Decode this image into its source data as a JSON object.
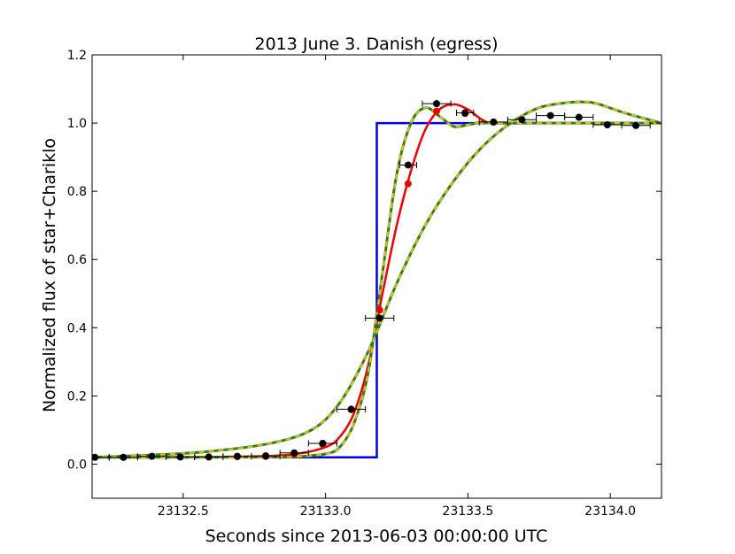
{
  "chart_data": {
    "type": "line",
    "title": "2013 June 3. Danish (egress)",
    "xlabel": "Seconds since 2013-06-03 00:00:00 UTC",
    "ylabel": "Normalized flux of star+Chariklo",
    "xlim": [
      23132.18,
      23134.18
    ],
    "ylim": [
      -0.1,
      1.2
    ],
    "x_ticks": [
      23132.5,
      23133.0,
      23133.5,
      23134.0
    ],
    "x_tick_labels": [
      "23132.5",
      "23133.0",
      "23133.5",
      "23134.0"
    ],
    "y_ticks": [
      0.0,
      0.2,
      0.4,
      0.6,
      0.8,
      1.0,
      1.2
    ],
    "y_tick_labels": [
      "0.0",
      "0.2",
      "0.4",
      "0.6",
      "0.8",
      "1.0",
      "1.2"
    ],
    "grid": false,
    "legend": "none",
    "colors": {
      "observations": "#000000",
      "square_well": "#0000dd",
      "best_fit": "#ee0000",
      "green": "#2e7d2e",
      "yellow": "#e0c000"
    },
    "observations": {
      "x": [
        23132.19,
        23132.29,
        23132.39,
        23132.49,
        23132.59,
        23132.69,
        23132.79,
        23132.89,
        23132.99,
        23133.09,
        23133.19,
        23133.29,
        23133.39,
        23133.49,
        23133.59,
        23133.69,
        23133.79,
        23133.89,
        23133.99,
        23134.09
      ],
      "y": [
        0.02,
        0.02,
        0.023,
        0.021,
        0.021,
        0.023,
        0.023,
        0.033,
        0.061,
        0.161,
        0.428,
        0.877,
        1.057,
        1.03,
        1.003,
        1.01,
        1.022,
        1.017,
        0.995,
        0.993
      ],
      "xerr": [
        0.05,
        0.05,
        0.05,
        0.05,
        0.05,
        0.05,
        0.05,
        0.05,
        0.05,
        0.05,
        0.05,
        0.03,
        0.05,
        0.03,
        0.05,
        0.05,
        0.05,
        0.05,
        0.05,
        0.05
      ]
    },
    "square_well": {
      "x": [
        23132.18,
        23133.18,
        23133.18,
        23134.18
      ],
      "y": [
        0.02,
        0.02,
        1.0,
        1.0
      ]
    },
    "best_fit_curve": {
      "x": [
        23132.18,
        23132.4,
        23132.6,
        23132.8,
        23132.9,
        23133.0,
        23133.05,
        23133.1,
        23133.15,
        23133.2,
        23133.25,
        23133.3,
        23133.35,
        23133.4,
        23133.45,
        23133.5,
        23133.55,
        23133.6,
        23133.8,
        23134.18
      ],
      "y": [
        0.02,
        0.02,
        0.021,
        0.024,
        0.03,
        0.05,
        0.08,
        0.15,
        0.29,
        0.5,
        0.7,
        0.86,
        0.98,
        1.04,
        1.055,
        1.04,
        1.01,
        1.0,
        1.0,
        1.0
      ]
    },
    "best_fit_points": {
      "x": [
        23132.69,
        23132.79,
        23132.89,
        23132.99,
        23133.09,
        23133.19,
        23133.29,
        23133.39,
        23133.49,
        23133.59
      ],
      "y": [
        0.022,
        0.025,
        0.03,
        0.058,
        0.16,
        0.452,
        0.822,
        1.035,
        1.028,
        1.003
      ]
    },
    "diffraction_curve_narrow": {
      "x": [
        23132.18,
        23132.4,
        23132.6,
        23132.8,
        23132.9,
        23133.0,
        23133.05,
        23133.1,
        23133.15,
        23133.2,
        23133.25,
        23133.3,
        23133.35,
        23133.4,
        23133.45,
        23133.5,
        23133.55,
        23133.6,
        23134.18
      ],
      "y": [
        0.02,
        0.02,
        0.02,
        0.021,
        0.022,
        0.03,
        0.05,
        0.12,
        0.27,
        0.56,
        0.85,
        1.0,
        1.045,
        1.02,
        0.99,
        0.995,
        1.003,
        1.0,
        1.0
      ]
    },
    "diffraction_curve_wide": {
      "x": [
        23132.18,
        23132.4,
        23132.6,
        23132.8,
        23132.95,
        23133.05,
        23133.15,
        23133.25,
        23133.35,
        23133.45,
        23133.55,
        23133.65,
        23133.75,
        23133.85,
        23133.9,
        23133.95,
        23134.05,
        23134.18
      ],
      "y": [
        0.02,
        0.027,
        0.038,
        0.06,
        0.1,
        0.18,
        0.33,
        0.53,
        0.7,
        0.83,
        0.93,
        1.0,
        1.045,
        1.06,
        1.062,
        1.058,
        1.03,
        1.0
      ]
    }
  }
}
